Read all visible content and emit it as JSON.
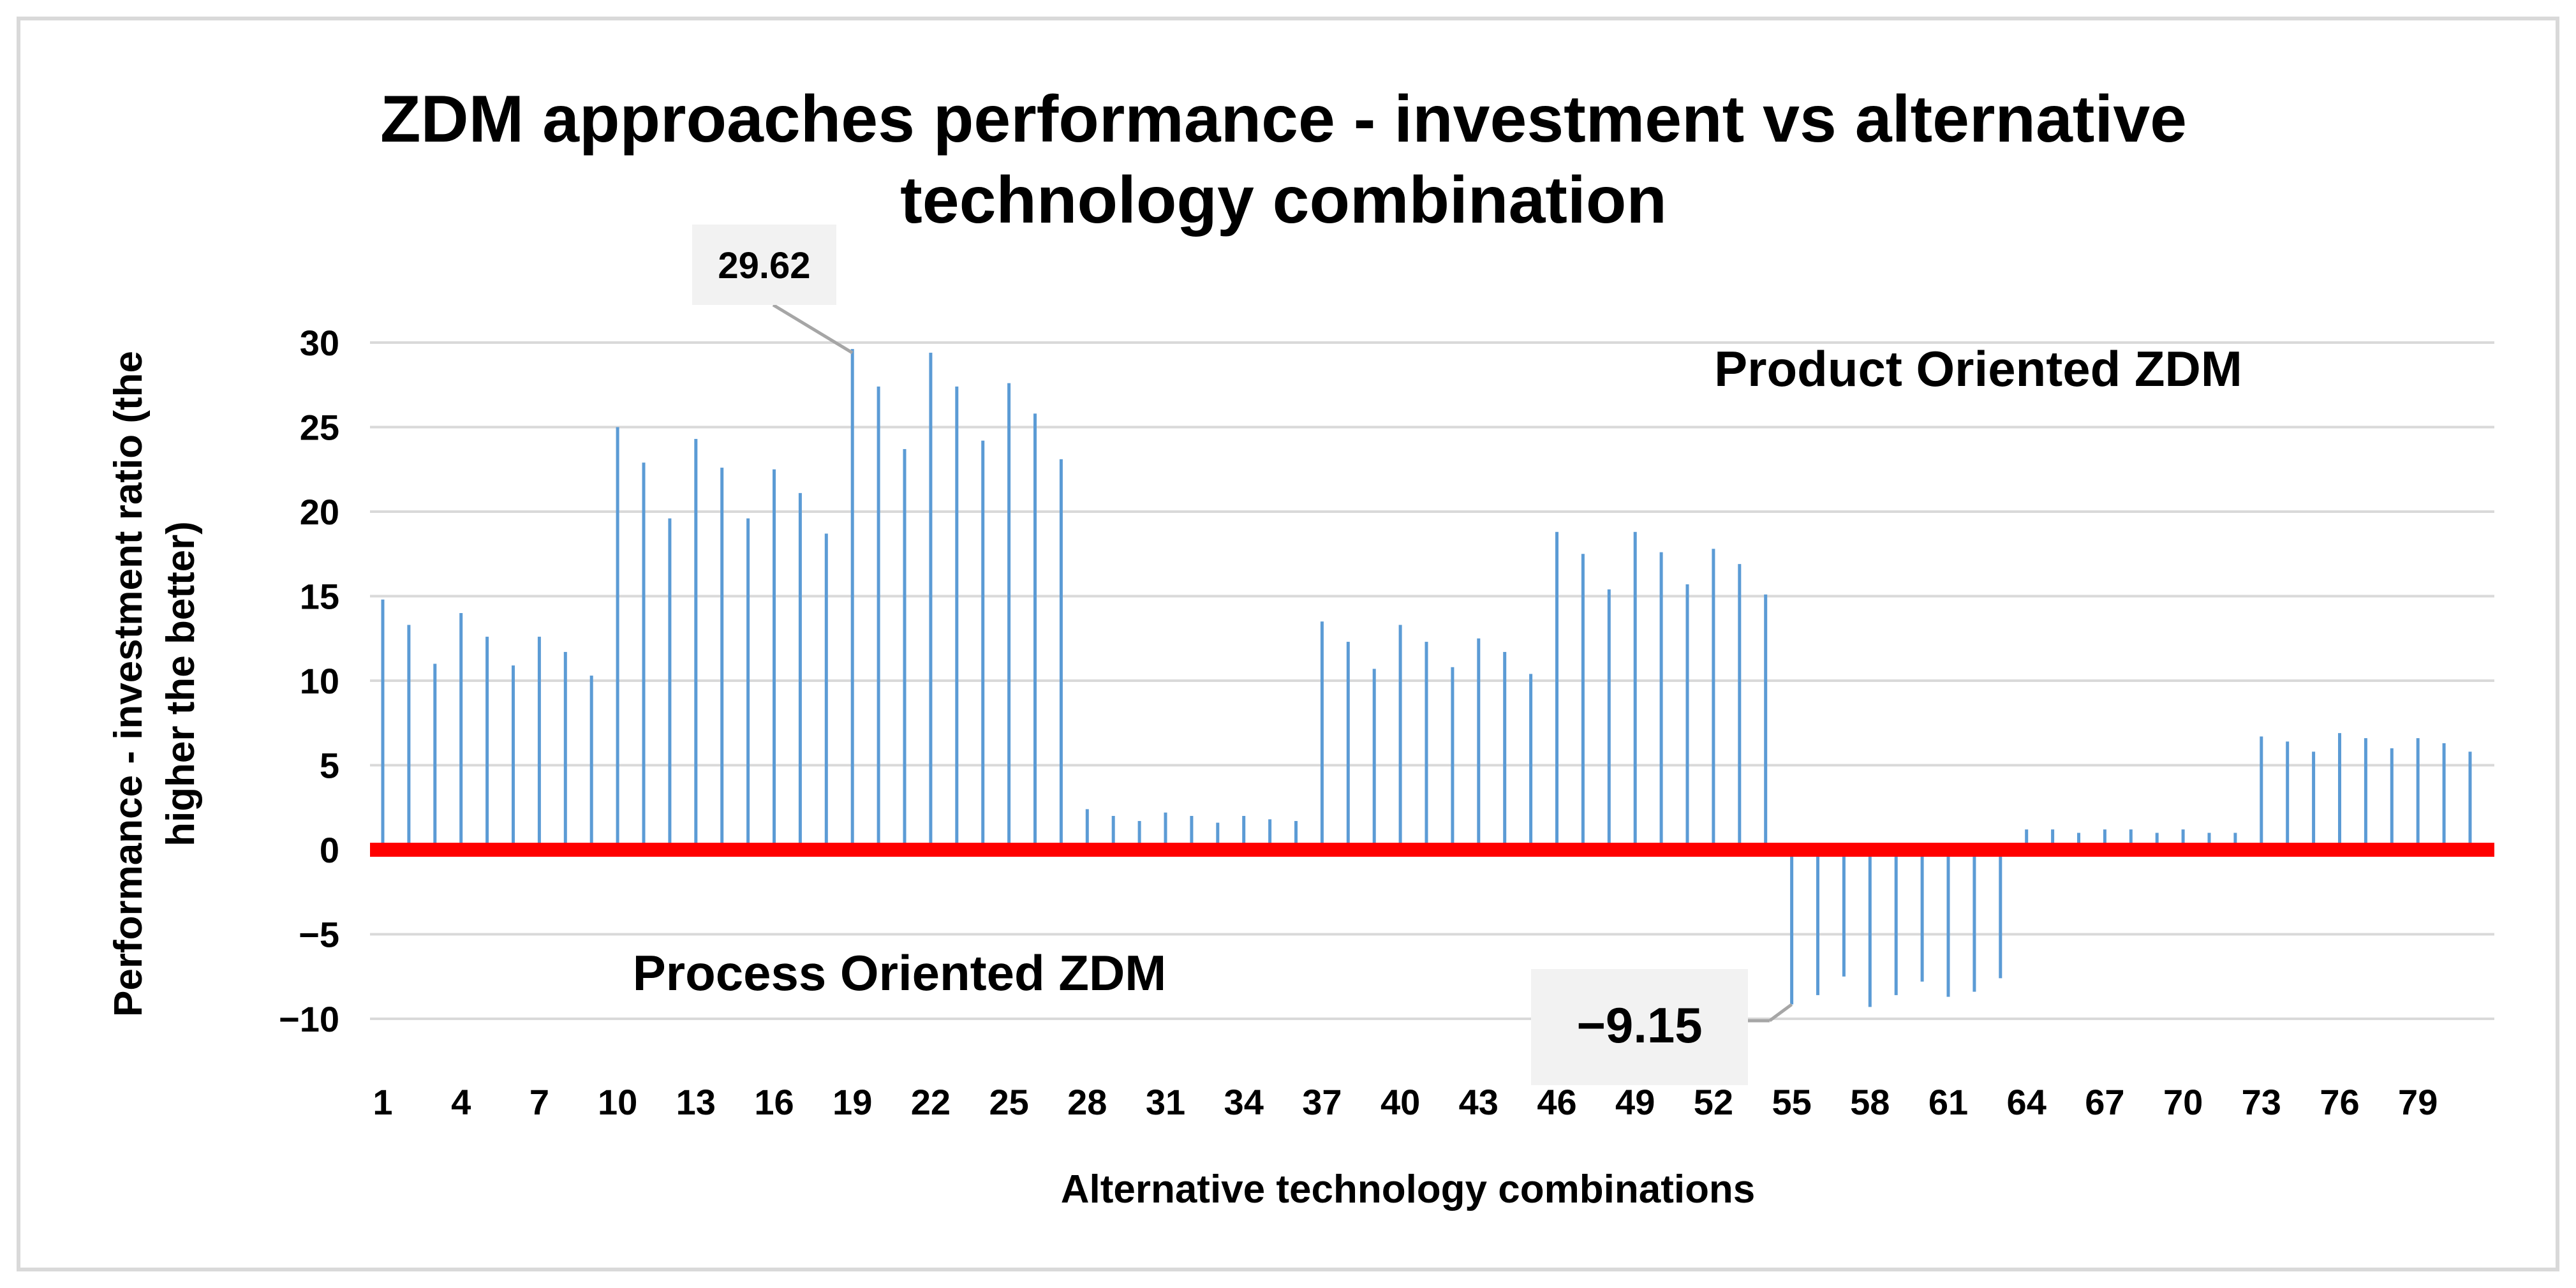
{
  "chart_data": {
    "type": "bar",
    "title_lines": [
      "ZDM approaches performance - investment vs alternative",
      "technology combination"
    ],
    "xlabel": "Alternative technology combinations",
    "ylabel_lines": [
      "Performance - investment ratio (the",
      "higher the better)"
    ],
    "ylim": [
      -11,
      32
    ],
    "yticks": [
      30,
      25,
      20,
      15,
      10,
      5,
      0,
      -5,
      -10
    ],
    "ytick_labels": [
      "30",
      "25",
      "20",
      "15",
      "10",
      "5",
      "0",
      "−5",
      "−10"
    ],
    "xtick_labels": [
      "1",
      "4",
      "7",
      "10",
      "13",
      "16",
      "19",
      "22",
      "25",
      "28",
      "31",
      "34",
      "37",
      "40",
      "43",
      "46",
      "49",
      "52",
      "55",
      "58",
      "61",
      "64",
      "67",
      "70",
      "73",
      "76",
      "79"
    ],
    "categories": [
      1,
      2,
      3,
      4,
      5,
      6,
      7,
      8,
      9,
      10,
      11,
      12,
      13,
      14,
      15,
      16,
      17,
      18,
      19,
      20,
      21,
      22,
      23,
      24,
      25,
      26,
      27,
      28,
      29,
      30,
      31,
      32,
      33,
      34,
      35,
      36,
      37,
      38,
      39,
      40,
      41,
      42,
      43,
      44,
      45,
      46,
      47,
      48,
      49,
      50,
      51,
      52,
      53,
      54,
      55,
      56,
      57,
      58,
      59,
      60,
      61,
      62,
      63,
      64,
      65,
      66,
      67,
      68,
      69,
      70,
      71,
      72,
      73,
      74,
      75,
      76,
      77,
      78,
      79,
      80,
      81
    ],
    "values": [
      14.8,
      13.3,
      11.0,
      14.0,
      12.6,
      10.9,
      12.6,
      11.7,
      10.3,
      25.0,
      22.9,
      19.6,
      24.3,
      22.6,
      19.6,
      22.5,
      21.1,
      18.7,
      29.62,
      27.4,
      23.7,
      29.4,
      27.4,
      24.2,
      27.6,
      25.8,
      23.1,
      2.4,
      2.0,
      1.7,
      2.2,
      2.0,
      1.6,
      2.0,
      1.8,
      1.7,
      13.5,
      12.3,
      10.7,
      13.3,
      12.3,
      10.8,
      12.5,
      11.7,
      10.4,
      18.8,
      17.5,
      15.4,
      18.8,
      17.6,
      15.7,
      17.8,
      16.9,
      15.1,
      -9.15,
      -8.6,
      -7.5,
      -9.3,
      -8.6,
      -7.8,
      -8.7,
      -8.4,
      -7.6,
      1.2,
      1.2,
      1.0,
      1.2,
      1.2,
      1.0,
      1.2,
      1.0,
      1.0,
      6.7,
      6.4,
      5.8,
      6.9,
      6.6,
      6.0,
      6.6,
      6.3,
      5.8
    ],
    "bar_color": "#5b9bd5",
    "zero_line_color": "#ff0000",
    "grid": true,
    "grid_color": "#d9d9d9",
    "annotations": [
      {
        "text": "Product Oriented ZDM"
      },
      {
        "text": "Process Oriented ZDM"
      }
    ],
    "callouts": [
      {
        "label": "29.62",
        "index": 18
      },
      {
        "label": "−9.15",
        "index": 54
      }
    ]
  }
}
